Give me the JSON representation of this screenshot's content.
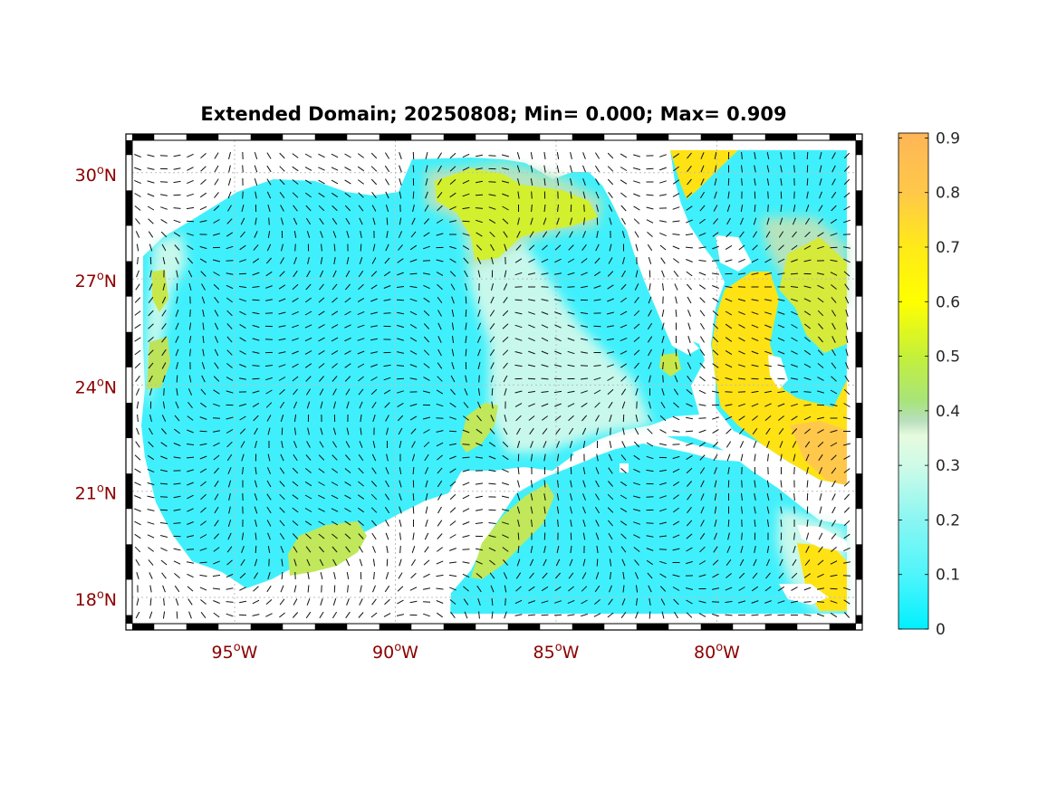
{
  "title": "Extended Domain; 20250808; Min= 0.000; Max= 0.909",
  "colors": {
    "axis_label": "#8b0000",
    "land": "#ffffff",
    "colormap": [
      "#00f0ff",
      "#4ff5fb",
      "#aaf7ee",
      "#e2fbdd",
      "#bfe0c0",
      "#a5e870",
      "#c7f032",
      "#ffff00",
      "#ffdd22",
      "#ffb657"
    ]
  },
  "map": {
    "lat_ticks": [
      {
        "value": 30,
        "deg": "30",
        "hemi": "N"
      },
      {
        "value": 27,
        "deg": "27",
        "hemi": "N"
      },
      {
        "value": 24,
        "deg": "24",
        "hemi": "N"
      },
      {
        "value": 21,
        "deg": "21",
        "hemi": "N"
      },
      {
        "value": 18,
        "deg": "18",
        "hemi": "N"
      }
    ],
    "lon_ticks": [
      {
        "value": -95,
        "deg": "95",
        "hemi": "W"
      },
      {
        "value": -90,
        "deg": "90",
        "hemi": "W"
      },
      {
        "value": -85,
        "deg": "85",
        "hemi": "W"
      },
      {
        "value": -80,
        "deg": "80",
        "hemi": "W"
      }
    ]
  },
  "colorbar": {
    "ticks": [
      "0",
      "0.1",
      "0.2",
      "0.3",
      "0.4",
      "0.5",
      "0.6",
      "0.7",
      "0.8",
      "0.9"
    ],
    "min": 0,
    "max": 0.909
  }
}
